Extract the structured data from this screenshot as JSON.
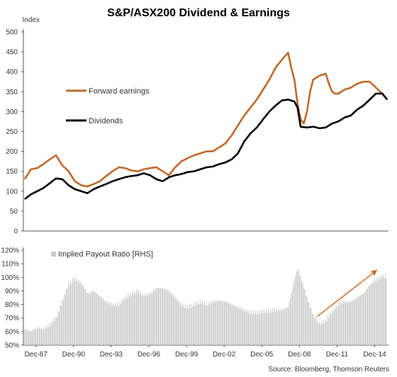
{
  "colors": {
    "title": "#C55A11",
    "earnings": "#C0692A",
    "dividends": "#000000",
    "payout": "#C9C9C9",
    "arrow": "#D2691E",
    "axis": "#555555"
  },
  "chart_data": [
    {
      "type": "line",
      "title": "S&P/ASX200 Dividend & Earnings",
      "ylabel": "Index",
      "ylim": [
        0,
        500
      ],
      "yticks": [
        "0",
        "50",
        "100",
        "150",
        "200",
        "250",
        "300",
        "350",
        "400",
        "450",
        "500"
      ],
      "legend_position": "left",
      "series": [
        {
          "name": "Forward earnings",
          "points": [
            [
              1987.0,
              130
            ],
            [
              1987.5,
              155
            ],
            [
              1988.0,
              158
            ],
            [
              1988.5,
              168
            ],
            [
              1989.0,
              180
            ],
            [
              1989.5,
              190
            ],
            [
              1990.0,
              165
            ],
            [
              1990.5,
              150
            ],
            [
              1991.0,
              125
            ],
            [
              1991.5,
              115
            ],
            [
              1992.0,
              112
            ],
            [
              1992.5,
              118
            ],
            [
              1993.0,
              125
            ],
            [
              1993.5,
              138
            ],
            [
              1994.0,
              150
            ],
            [
              1994.5,
              160
            ],
            [
              1995.0,
              158
            ],
            [
              1995.5,
              152
            ],
            [
              1996.0,
              150
            ],
            [
              1996.5,
              155
            ],
            [
              1997.0,
              158
            ],
            [
              1997.5,
              160
            ],
            [
              1998.0,
              150
            ],
            [
              1998.5,
              140
            ],
            [
              1999.0,
              160
            ],
            [
              1999.5,
              175
            ],
            [
              2000.0,
              183
            ],
            [
              2000.5,
              190
            ],
            [
              2001.0,
              195
            ],
            [
              2001.5,
              200
            ],
            [
              2002.0,
              200
            ],
            [
              2002.5,
              210
            ],
            [
              2003.0,
              220
            ],
            [
              2003.5,
              240
            ],
            [
              2004.0,
              265
            ],
            [
              2004.5,
              290
            ],
            [
              2005.0,
              310
            ],
            [
              2005.5,
              330
            ],
            [
              2006.0,
              355
            ],
            [
              2006.5,
              380
            ],
            [
              2007.0,
              410
            ],
            [
              2007.5,
              430
            ],
            [
              2008.0,
              448
            ],
            [
              2008.25,
              410
            ],
            [
              2008.5,
              380
            ],
            [
              2008.75,
              320
            ],
            [
              2009.0,
              280
            ],
            [
              2009.25,
              270
            ],
            [
              2009.5,
              300
            ],
            [
              2009.75,
              350
            ],
            [
              2010.0,
              380
            ],
            [
              2010.5,
              390
            ],
            [
              2011.0,
              395
            ],
            [
              2011.25,
              370
            ],
            [
              2011.5,
              350
            ],
            [
              2011.75,
              345
            ],
            [
              2012.0,
              345
            ],
            [
              2012.5,
              355
            ],
            [
              2013.0,
              360
            ],
            [
              2013.5,
              370
            ],
            [
              2014.0,
              375
            ],
            [
              2014.5,
              375
            ],
            [
              2015.0,
              360
            ],
            [
              2015.5,
              345
            ],
            [
              2015.9,
              330
            ]
          ]
        },
        {
          "name": "Dividends",
          "points": [
            [
              1987.0,
              80
            ],
            [
              1987.5,
              92
            ],
            [
              1988.0,
              100
            ],
            [
              1988.5,
              108
            ],
            [
              1989.0,
              120
            ],
            [
              1989.5,
              132
            ],
            [
              1990.0,
              130
            ],
            [
              1990.5,
              115
            ],
            [
              1991.0,
              105
            ],
            [
              1991.5,
              100
            ],
            [
              1992.0,
              95
            ],
            [
              1992.5,
              105
            ],
            [
              1993.0,
              112
            ],
            [
              1993.5,
              118
            ],
            [
              1994.0,
              125
            ],
            [
              1994.5,
              130
            ],
            [
              1995.0,
              135
            ],
            [
              1995.5,
              138
            ],
            [
              1996.0,
              140
            ],
            [
              1996.5,
              145
            ],
            [
              1997.0,
              140
            ],
            [
              1997.5,
              130
            ],
            [
              1998.0,
              125
            ],
            [
              1998.5,
              135
            ],
            [
              1999.0,
              140
            ],
            [
              1999.5,
              143
            ],
            [
              2000.0,
              148
            ],
            [
              2000.5,
              150
            ],
            [
              2001.0,
              155
            ],
            [
              2001.5,
              160
            ],
            [
              2002.0,
              162
            ],
            [
              2002.5,
              168
            ],
            [
              2003.0,
              172
            ],
            [
              2003.5,
              180
            ],
            [
              2004.0,
              195
            ],
            [
              2004.5,
              225
            ],
            [
              2005.0,
              245
            ],
            [
              2005.5,
              260
            ],
            [
              2006.0,
              280
            ],
            [
              2006.5,
              300
            ],
            [
              2007.0,
              315
            ],
            [
              2007.5,
              328
            ],
            [
              2008.0,
              330
            ],
            [
              2008.5,
              325
            ],
            [
              2008.75,
              310
            ],
            [
              2009.0,
              262
            ],
            [
              2009.5,
              260
            ],
            [
              2010.0,
              262
            ],
            [
              2010.5,
              258
            ],
            [
              2011.0,
              260
            ],
            [
              2011.5,
              270
            ],
            [
              2012.0,
              275
            ],
            [
              2012.5,
              285
            ],
            [
              2013.0,
              290
            ],
            [
              2013.5,
              305
            ],
            [
              2014.0,
              315
            ],
            [
              2014.5,
              330
            ],
            [
              2015.0,
              345
            ],
            [
              2015.5,
              345
            ],
            [
              2015.9,
              330
            ]
          ]
        }
      ]
    },
    {
      "type": "bar",
      "ylim": [
        50,
        120
      ],
      "yticks": [
        "50%",
        "60%",
        "70%",
        "80%",
        "90%",
        "100%",
        "110%",
        "120%"
      ],
      "xticks": [
        "Dec-87",
        "Dec-90",
        "Dec-93",
        "Dec-96",
        "Dec-99",
        "Dec-02",
        "Dec-05",
        "Dec-08",
        "Dec-11",
        "Dec-14"
      ],
      "series": [
        {
          "name": "Implied Payout Ratio [RHS]",
          "points": [
            [
              1987.0,
              62
            ],
            [
              1987.5,
              60
            ],
            [
              1988.0,
              63
            ],
            [
              1988.5,
              62
            ],
            [
              1989.0,
              65
            ],
            [
              1989.5,
              70
            ],
            [
              1990.0,
              82
            ],
            [
              1990.5,
              95
            ],
            [
              1991.0,
              99
            ],
            [
              1991.5,
              96
            ],
            [
              1992.0,
              88
            ],
            [
              1992.5,
              90
            ],
            [
              1993.0,
              86
            ],
            [
              1993.5,
              82
            ],
            [
              1994.0,
              80
            ],
            [
              1994.5,
              80
            ],
            [
              1995.0,
              85
            ],
            [
              1995.5,
              88
            ],
            [
              1996.0,
              90
            ],
            [
              1996.5,
              87
            ],
            [
              1997.0,
              88
            ],
            [
              1997.5,
              92
            ],
            [
              1998.0,
              92
            ],
            [
              1998.5,
              90
            ],
            [
              1999.0,
              85
            ],
            [
              1999.5,
              80
            ],
            [
              2000.0,
              78
            ],
            [
              2000.5,
              80
            ],
            [
              2001.0,
              82
            ],
            [
              2001.5,
              80
            ],
            [
              2002.0,
              82
            ],
            [
              2002.5,
              83
            ],
            [
              2003.0,
              82
            ],
            [
              2003.5,
              80
            ],
            [
              2004.0,
              78
            ],
            [
              2004.5,
              76
            ],
            [
              2005.0,
              74
            ],
            [
              2005.5,
              74
            ],
            [
              2006.0,
              75
            ],
            [
              2006.5,
              75
            ],
            [
              2007.0,
              76
            ],
            [
              2007.5,
              76
            ],
            [
              2008.0,
              78
            ],
            [
              2008.5,
              98
            ],
            [
              2008.75,
              107
            ],
            [
              2009.0,
              100
            ],
            [
              2009.5,
              85
            ],
            [
              2010.0,
              72
            ],
            [
              2010.5,
              66
            ],
            [
              2011.0,
              68
            ],
            [
              2011.5,
              75
            ],
            [
              2012.0,
              80
            ],
            [
              2012.5,
              82
            ],
            [
              2013.0,
              82
            ],
            [
              2013.5,
              85
            ],
            [
              2014.0,
              88
            ],
            [
              2014.5,
              94
            ],
            [
              2015.0,
              98
            ],
            [
              2015.5,
              101
            ],
            [
              2015.9,
              100
            ]
          ]
        }
      ]
    }
  ],
  "source": "Source: Bloomberg, Thomson Reuters"
}
